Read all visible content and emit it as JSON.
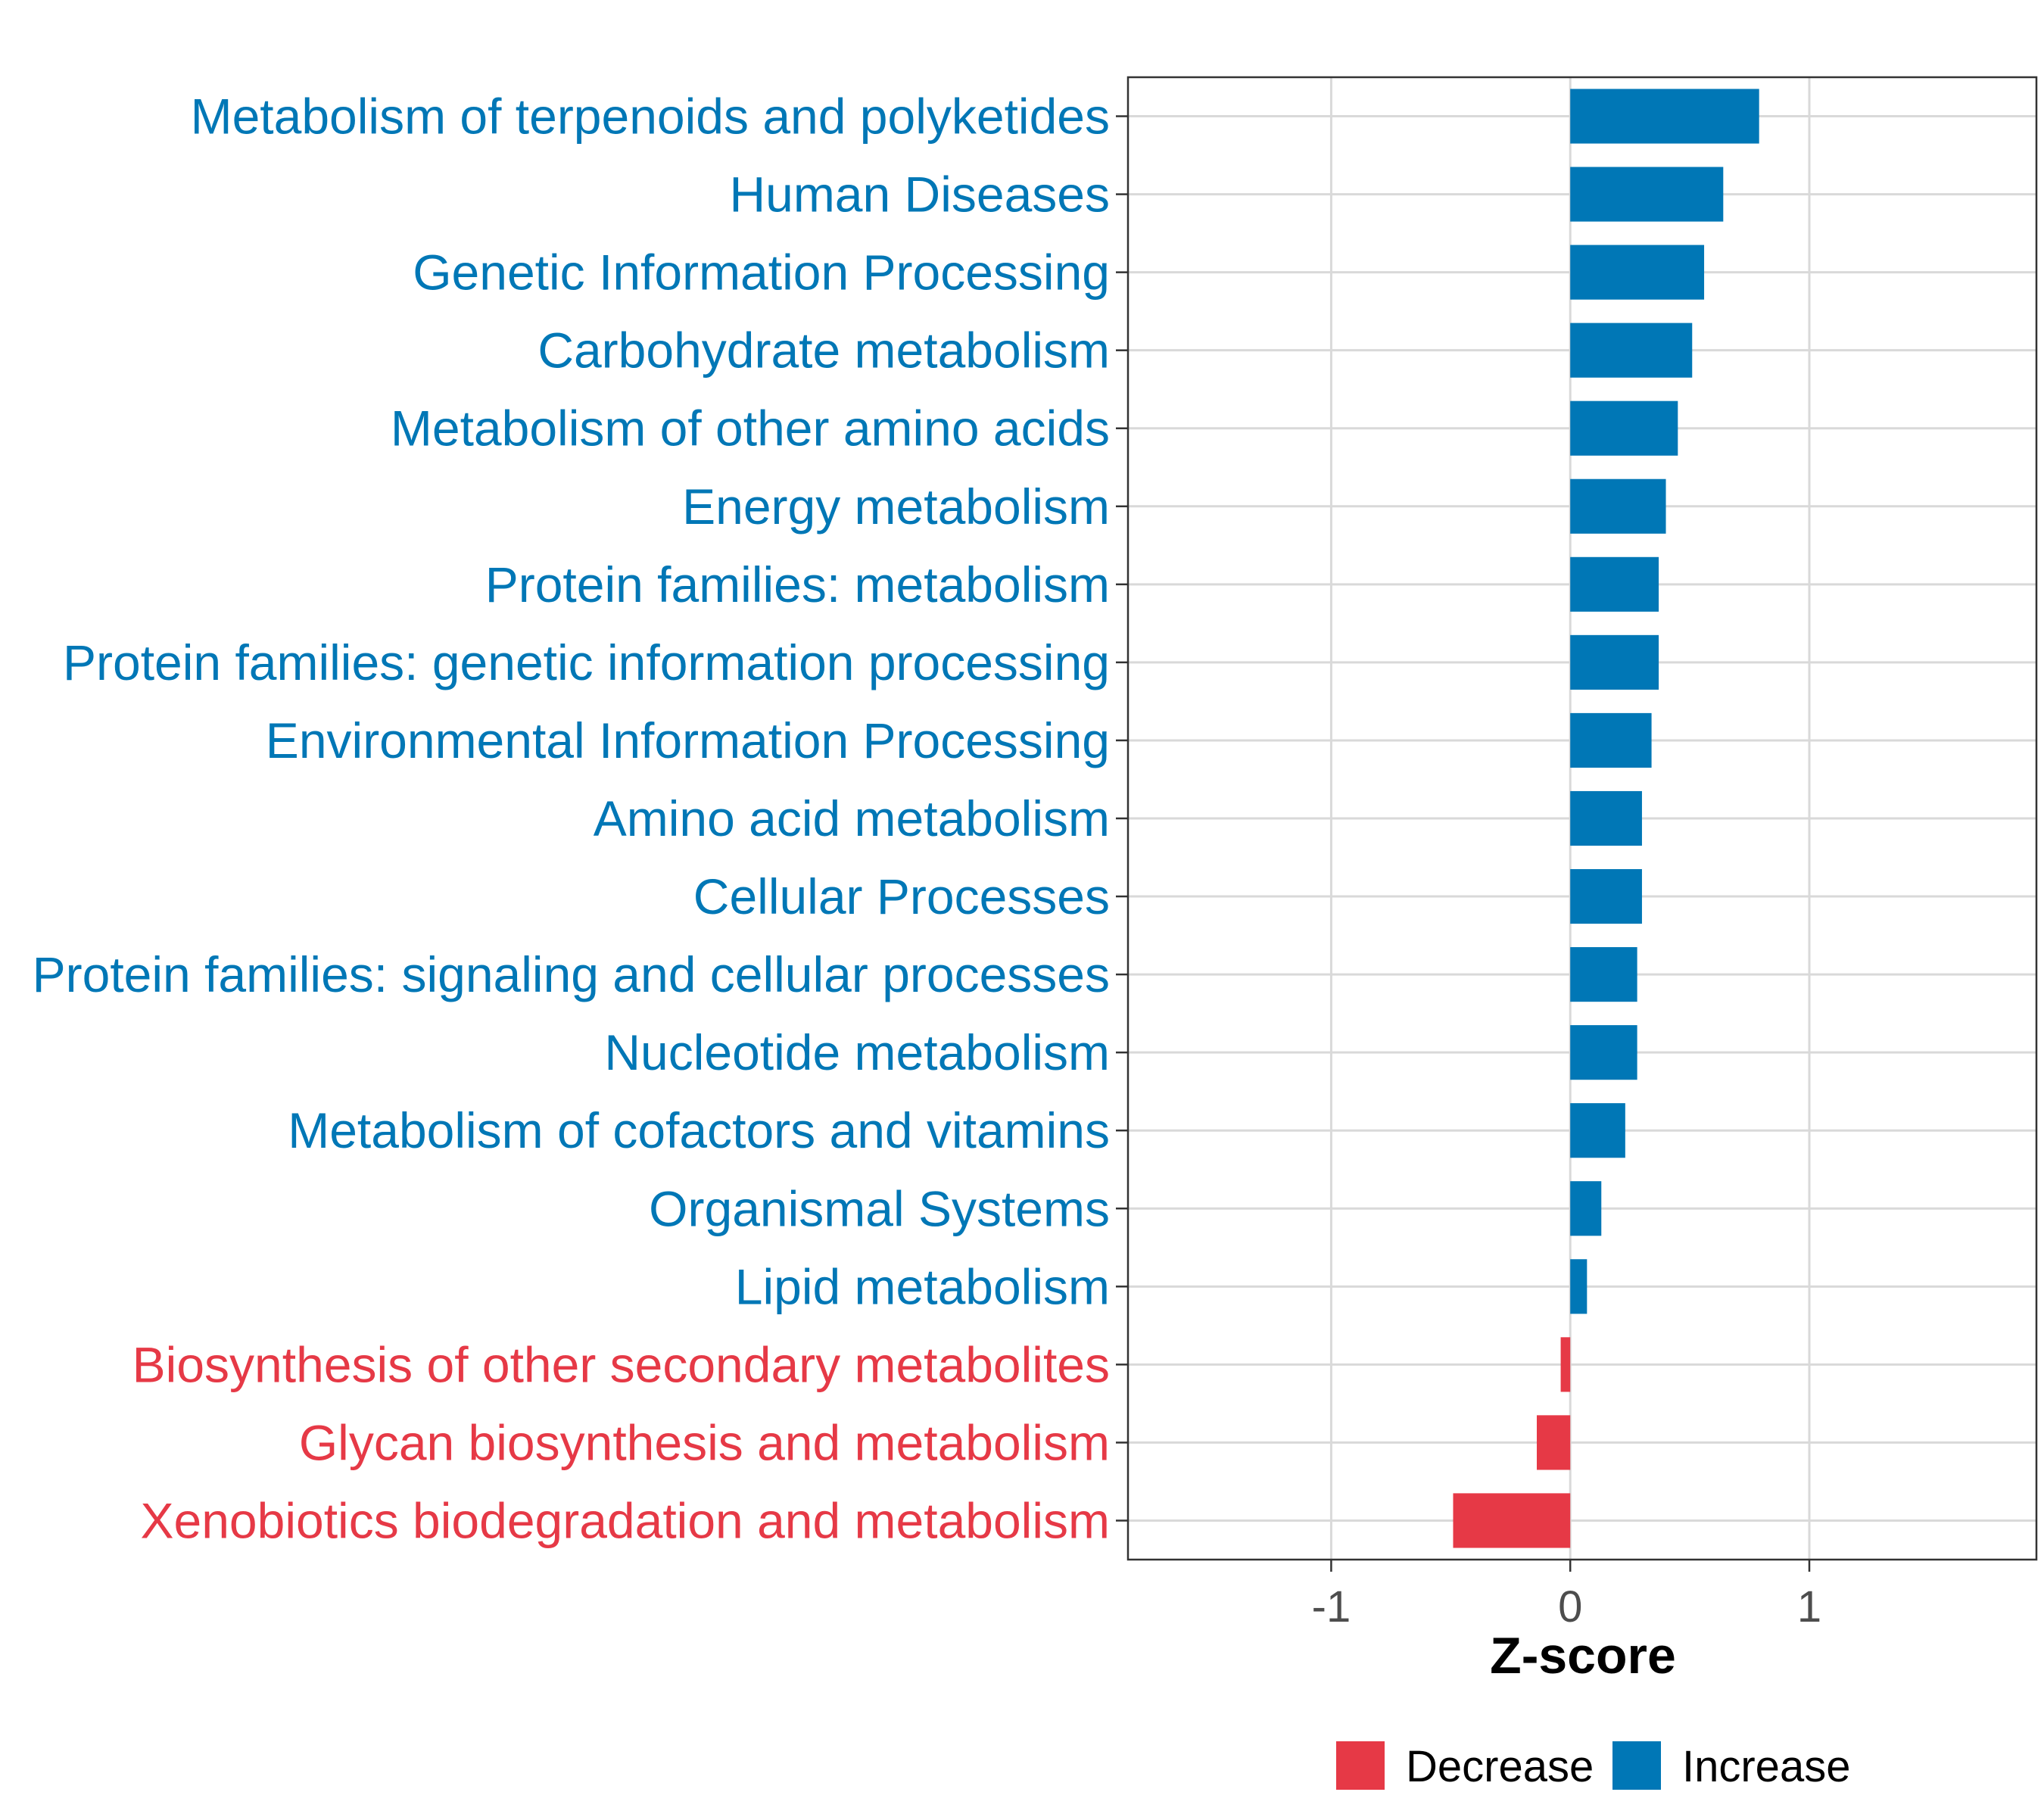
{
  "chart_data": {
    "type": "bar",
    "orientation": "horizontal",
    "xlabel": "Z-score",
    "xlim": [
      -1.85,
      1.95
    ],
    "xticks": [
      -1,
      0,
      1
    ],
    "xtick_labels": [
      "-1",
      "0",
      "1"
    ],
    "grid": true,
    "legend_position": "bottom",
    "legend": [
      {
        "name": "Decrease",
        "color": "#E63946"
      },
      {
        "name": "Increase",
        "color": "#0077B6"
      }
    ],
    "categories": [
      "Metabolism of terpenoids and polyketides",
      "Human Diseases",
      "Genetic Information Processing",
      "Carbohydrate metabolism",
      "Metabolism of other amino acids",
      "Energy metabolism",
      "Protein families: metabolism",
      "Protein families: genetic information processing",
      "Environmental Information Processing",
      "Amino acid metabolism",
      "Cellular Processes",
      "Protein families: signaling and cellular processes",
      "Nucleotide metabolism",
      "Metabolism of cofactors and vitamins",
      "Organismal Systems",
      "Lipid metabolism",
      "Biosynthesis of other secondary metabolites",
      "Glycan biosynthesis and metabolism",
      "Xenobiotics biodegradation and metabolism"
    ],
    "values": [
      0.79,
      0.64,
      0.56,
      0.51,
      0.45,
      0.4,
      0.37,
      0.37,
      0.34,
      0.3,
      0.3,
      0.28,
      0.28,
      0.23,
      0.13,
      0.07,
      -0.04,
      -0.14,
      -0.49
    ],
    "groups": [
      "Increase",
      "Increase",
      "Increase",
      "Increase",
      "Increase",
      "Increase",
      "Increase",
      "Increase",
      "Increase",
      "Increase",
      "Increase",
      "Increase",
      "Increase",
      "Increase",
      "Increase",
      "Increase",
      "Decrease",
      "Decrease",
      "Decrease"
    ]
  }
}
